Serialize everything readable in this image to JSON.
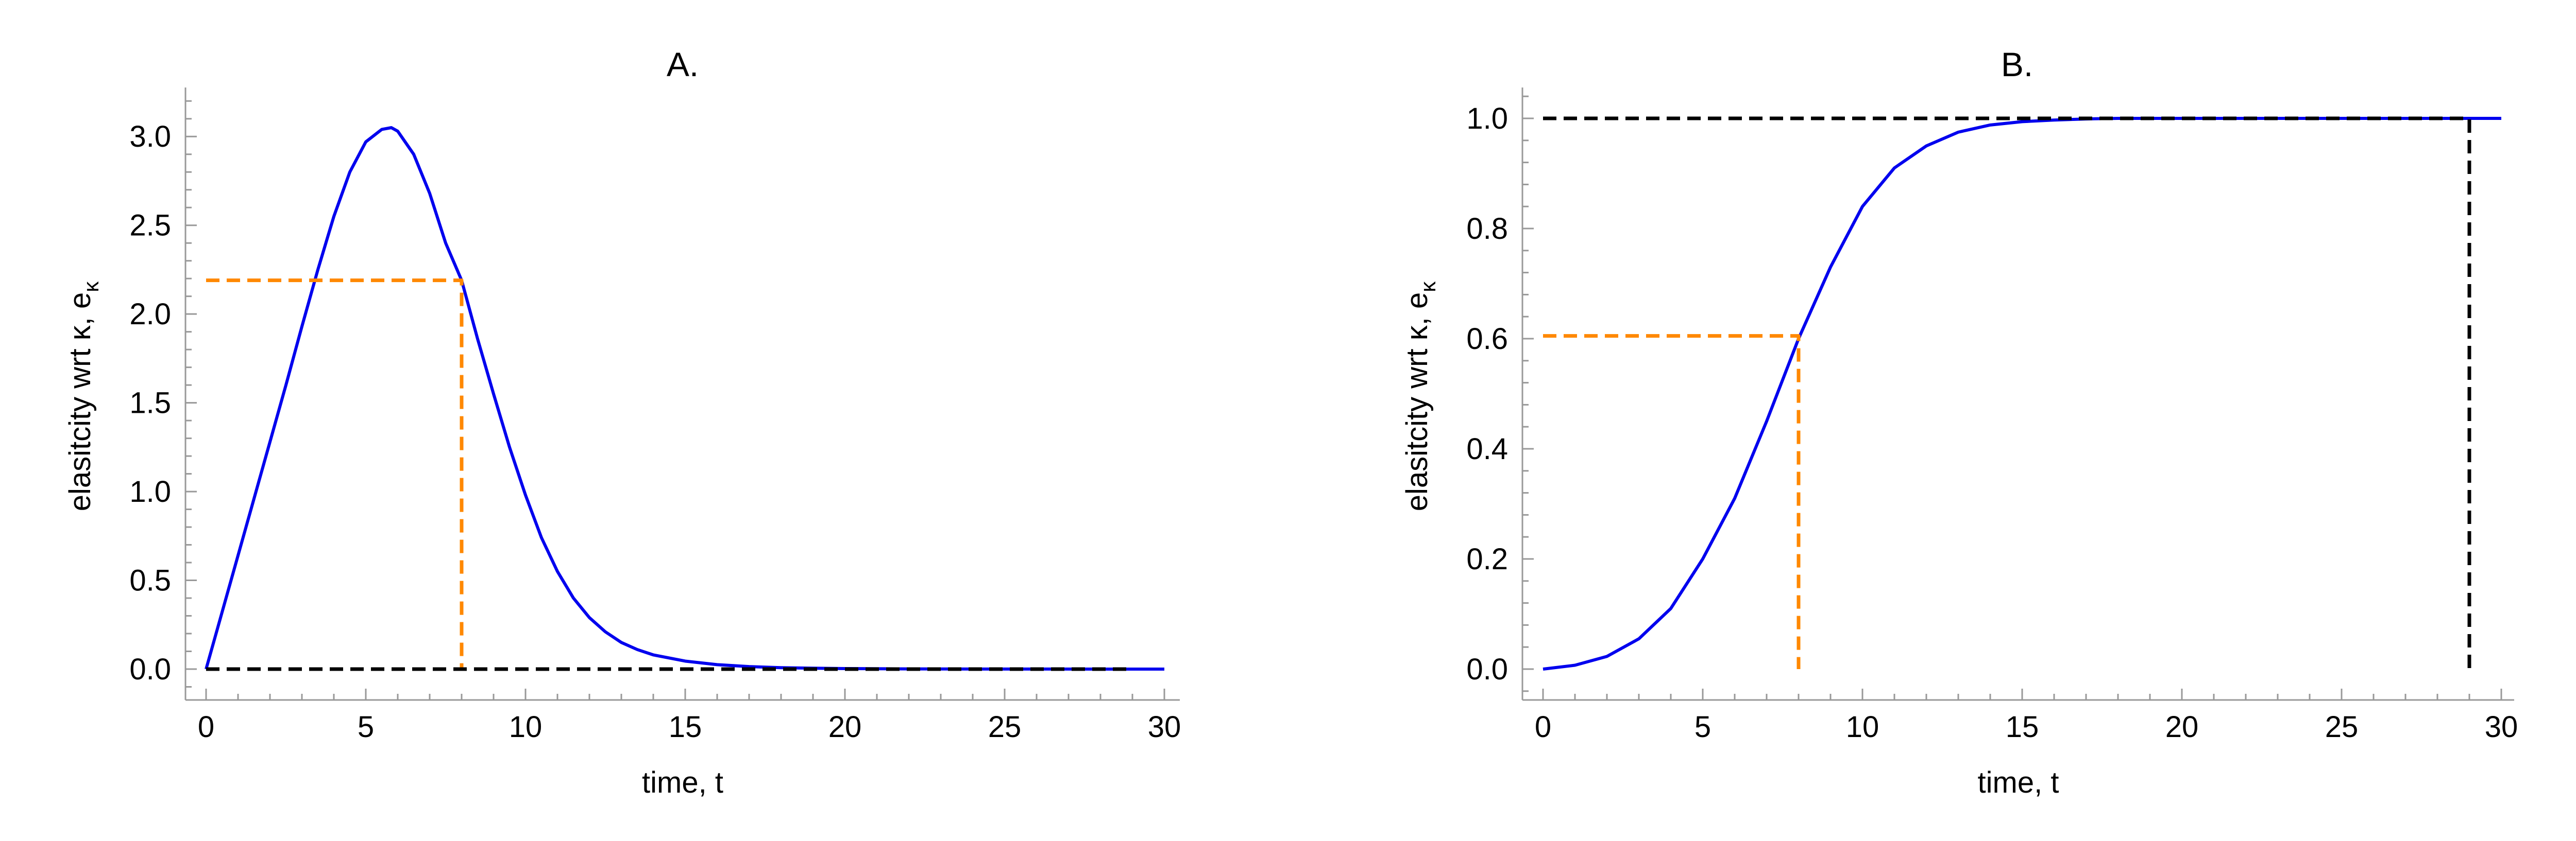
{
  "chart_data": [
    {
      "type": "line",
      "title": "A.",
      "xlabel": "time, t",
      "ylabel_main": "elasitcity wrt κ,",
      "ylabel_e": "e",
      "ylabel_sub": "κ",
      "xlim": [
        0,
        30
      ],
      "ylim": [
        0,
        3.05
      ],
      "xticks": [
        0,
        5,
        10,
        15,
        20,
        25,
        30
      ],
      "yticks": [
        0,
        0.5,
        1,
        1.5,
        2,
        2.5,
        3
      ],
      "xtick_labels": [
        "0",
        "5",
        "10",
        "15",
        "20",
        "25",
        "30"
      ],
      "ytick_labels": [
        "0.0",
        "0.5",
        "1.0",
        "1.5",
        "2.0",
        "2.5",
        "3.0"
      ],
      "grid": false,
      "series": [
        {
          "color": "#0000ee",
          "style": "solid",
          "x": [
            0,
            0.5,
            1,
            1.5,
            2,
            2.5,
            3,
            3.5,
            4,
            4.5,
            5,
            5.5,
            5.8,
            6,
            6.5,
            7,
            7.5,
            8,
            8.5,
            9,
            9.5,
            10,
            10.5,
            11,
            11.5,
            12,
            12.5,
            13,
            13.5,
            14,
            15,
            16,
            17,
            18,
            19,
            20,
            22,
            25,
            30
          ],
          "y": [
            0,
            0.32,
            0.64,
            0.96,
            1.28,
            1.6,
            1.93,
            2.25,
            2.55,
            2.8,
            2.97,
            3.04,
            3.05,
            3.03,
            2.9,
            2.68,
            2.4,
            2.19,
            1.86,
            1.55,
            1.25,
            0.98,
            0.74,
            0.55,
            0.4,
            0.29,
            0.21,
            0.15,
            0.11,
            0.08,
            0.045,
            0.025,
            0.014,
            0.008,
            0.005,
            0.003,
            0.001,
            0.0003,
            0
          ]
        },
        {
          "color": "#ff8800",
          "style": "dashed",
          "x": [
            0,
            8,
            8
          ],
          "y": [
            2.19,
            2.19,
            0
          ]
        },
        {
          "color": "#000000",
          "style": "dashed",
          "x": [
            0,
            29
          ],
          "y": [
            0,
            0
          ]
        }
      ]
    },
    {
      "type": "line",
      "title": "B.",
      "xlabel": "time, t",
      "ylabel_main": "elasitcity wrt κ,",
      "ylabel_e": "e",
      "ylabel_sub": "κ",
      "xlim": [
        0,
        30
      ],
      "ylim": [
        0,
        1.0
      ],
      "xticks": [
        0,
        5,
        10,
        15,
        20,
        25,
        30
      ],
      "yticks": [
        0,
        0.2,
        0.4,
        0.6,
        0.8,
        1
      ],
      "xtick_labels": [
        "0",
        "5",
        "10",
        "15",
        "20",
        "25",
        "30"
      ],
      "ytick_labels": [
        "0.0",
        "0.2",
        "0.4",
        "0.6",
        "0.8",
        "1.0"
      ],
      "grid": false,
      "series": [
        {
          "color": "#0000ee",
          "style": "solid",
          "x": [
            0,
            1,
            2,
            3,
            4,
            5,
            6,
            7,
            8,
            9,
            10,
            11,
            12,
            13,
            14,
            15,
            16,
            17,
            18,
            20,
            22,
            25,
            30
          ],
          "y": [
            0,
            0.007,
            0.023,
            0.055,
            0.11,
            0.2,
            0.31,
            0.45,
            0.6,
            0.73,
            0.84,
            0.91,
            0.95,
            0.975,
            0.988,
            0.994,
            0.997,
            0.999,
            1.0,
            1.0,
            1.0,
            1.0,
            1.0
          ]
        },
        {
          "color": "#ff8800",
          "style": "dashed",
          "x": [
            0,
            8,
            8
          ],
          "y": [
            0.605,
            0.605,
            0
          ]
        },
        {
          "color": "#000000",
          "style": "dashed",
          "x": [
            0,
            29,
            29
          ],
          "y": [
            1,
            1,
            0
          ]
        }
      ]
    }
  ]
}
